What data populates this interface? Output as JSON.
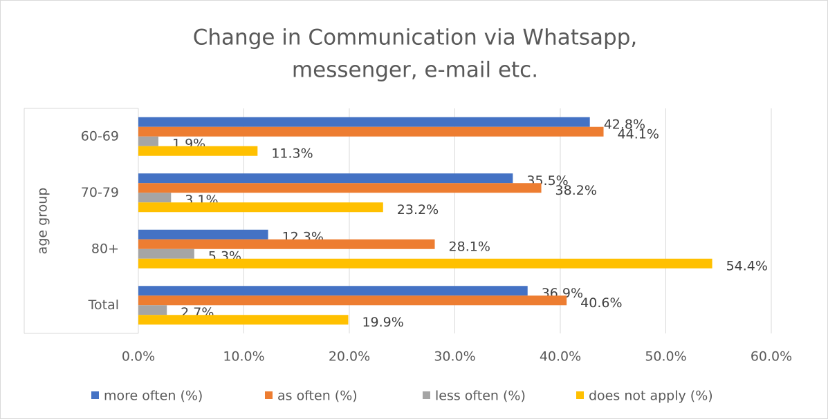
{
  "chart_data": {
    "type": "bar",
    "orientation": "horizontal",
    "title": [
      "Change in Communication via Whatsapp,",
      "messenger, e-mail etc."
    ],
    "y_axis_label": "age group",
    "categories": [
      "60-69",
      "70-79",
      "80+",
      "Total"
    ],
    "series": [
      {
        "name": "more often  (%)",
        "color": "#4472c4",
        "values": [
          42.8,
          35.5,
          12.3,
          36.9
        ],
        "value_labels": [
          "42.8%",
          "35.5%",
          "12.3%",
          "36.9%"
        ]
      },
      {
        "name": "as often  (%)",
        "color": "#ed7d31",
        "values": [
          44.1,
          38.2,
          28.1,
          40.6
        ],
        "value_labels": [
          "44.1%",
          "38.2%",
          "28.1%",
          "40.6%"
        ]
      },
      {
        "name": "less often  (%)",
        "color": "#a5a5a5",
        "values": [
          1.9,
          3.1,
          5.3,
          2.7
        ],
        "value_labels": [
          "1.9%",
          "3.1%",
          "5.3%",
          "2.7%"
        ]
      },
      {
        "name": "does not apply  (%)",
        "color": "#ffc000",
        "values": [
          11.3,
          23.2,
          54.4,
          19.9
        ],
        "value_labels": [
          "11.3%",
          "23.2%",
          "54.4%",
          "19.9%"
        ]
      }
    ],
    "xlim": [
      0,
      60
    ],
    "xticks": [
      {
        "value": 0,
        "label": "0.0%"
      },
      {
        "value": 10,
        "label": "10.0%"
      },
      {
        "value": 20,
        "label": "20.0%"
      },
      {
        "value": 30,
        "label": "30.0%"
      },
      {
        "value": 40,
        "label": "40.0%"
      },
      {
        "value": 50,
        "label": "50.0%"
      },
      {
        "value": 60,
        "label": "60.0%"
      }
    ],
    "grid": true,
    "legend": "bottom"
  }
}
